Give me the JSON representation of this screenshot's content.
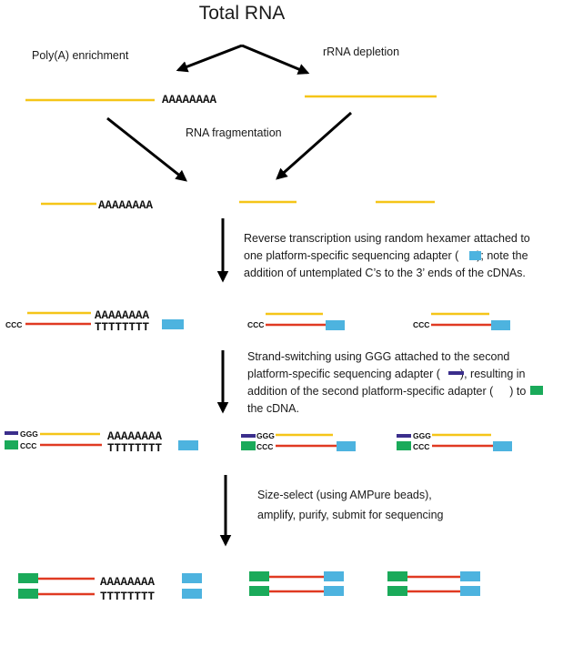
{
  "title": "Total RNA",
  "labels": {
    "polya": "Poly(A) enrichment",
    "rrna": "rRNA depletion",
    "fragmentation": "RNA fragmentation"
  },
  "sequences": {
    "polya_tail": "AAAAAAAA",
    "polyt": "TTTTTTTT",
    "ccc": "CCC",
    "ggg": "GGG"
  },
  "steps": {
    "reverse_transcription": {
      "line1": "Reverse transcription using random hexamer attached to",
      "line2_before": "one platform-specific sequencing adapter (",
      "line2_after": "); note the",
      "line3": "addition of untemplated C’s to the 3’ ends of the cDNAs."
    },
    "strand_switching": {
      "line1": "Strand-switching using GGG attached to the second",
      "line2_before": "platform-specific sequencing adapter (",
      "line2_after": "), resulting in",
      "line3_before": "addition of the second platform-specific adapter (",
      "line3_after": ") to",
      "line4": "the cDNA."
    },
    "size_select": {
      "line1": "Size-select (using AMPure beads),",
      "line2": "amplify, purify, submit for sequencing"
    }
  },
  "colors": {
    "rna": "#f5c518",
    "cdna": "#e03a22",
    "adapter_1": "#4db3df",
    "adapter_2_ggg": "#3b2e8c",
    "adapter_2": "#1aaa5a",
    "arrow": "#000000"
  }
}
